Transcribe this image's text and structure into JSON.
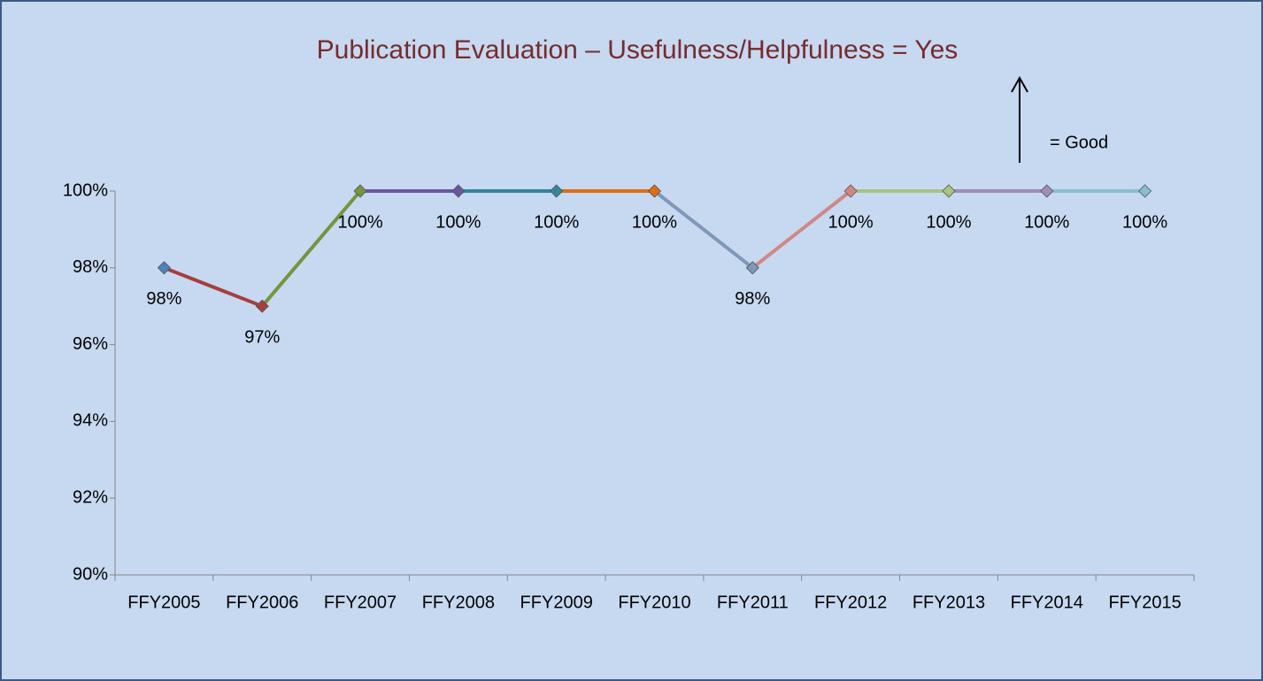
{
  "chart_data": {
    "type": "line",
    "title": "Publication Evaluation – Usefulness/Helpfulness = Yes",
    "annotation": "=  Good",
    "categories": [
      "FFY2005",
      "FFY2006",
      "FFY2007",
      "FFY2008",
      "FFY2009",
      "FFY2010",
      "FFY2011",
      "FFY2012",
      "FFY2013",
      "FFY2014",
      "FFY2015"
    ],
    "values": [
      98,
      97,
      100,
      100,
      100,
      100,
      98,
      100,
      100,
      100,
      100
    ],
    "value_labels": [
      "98%",
      "97%",
      "100%",
      "100%",
      "100%",
      "100%",
      "98%",
      "100%",
      "100%",
      "100%",
      "100%"
    ],
    "colors": [
      "#4f81bd",
      "#a53f3c",
      "#77933c",
      "#6a55a0",
      "#31859c",
      "#e46c0a",
      "#7f97b8",
      "#d08886",
      "#a9c47f",
      "#a08cb8",
      "#86c0d0"
    ],
    "ylim": [
      90,
      100
    ],
    "yticks": [
      {
        "value": 90,
        "label": "90%"
      },
      {
        "value": 92,
        "label": "92%"
      },
      {
        "value": 94,
        "label": "94%"
      },
      {
        "value": 96,
        "label": "96%"
      },
      {
        "value": 98,
        "label": "98%"
      },
      {
        "value": 100,
        "label": "100%"
      }
    ],
    "grid": false
  }
}
